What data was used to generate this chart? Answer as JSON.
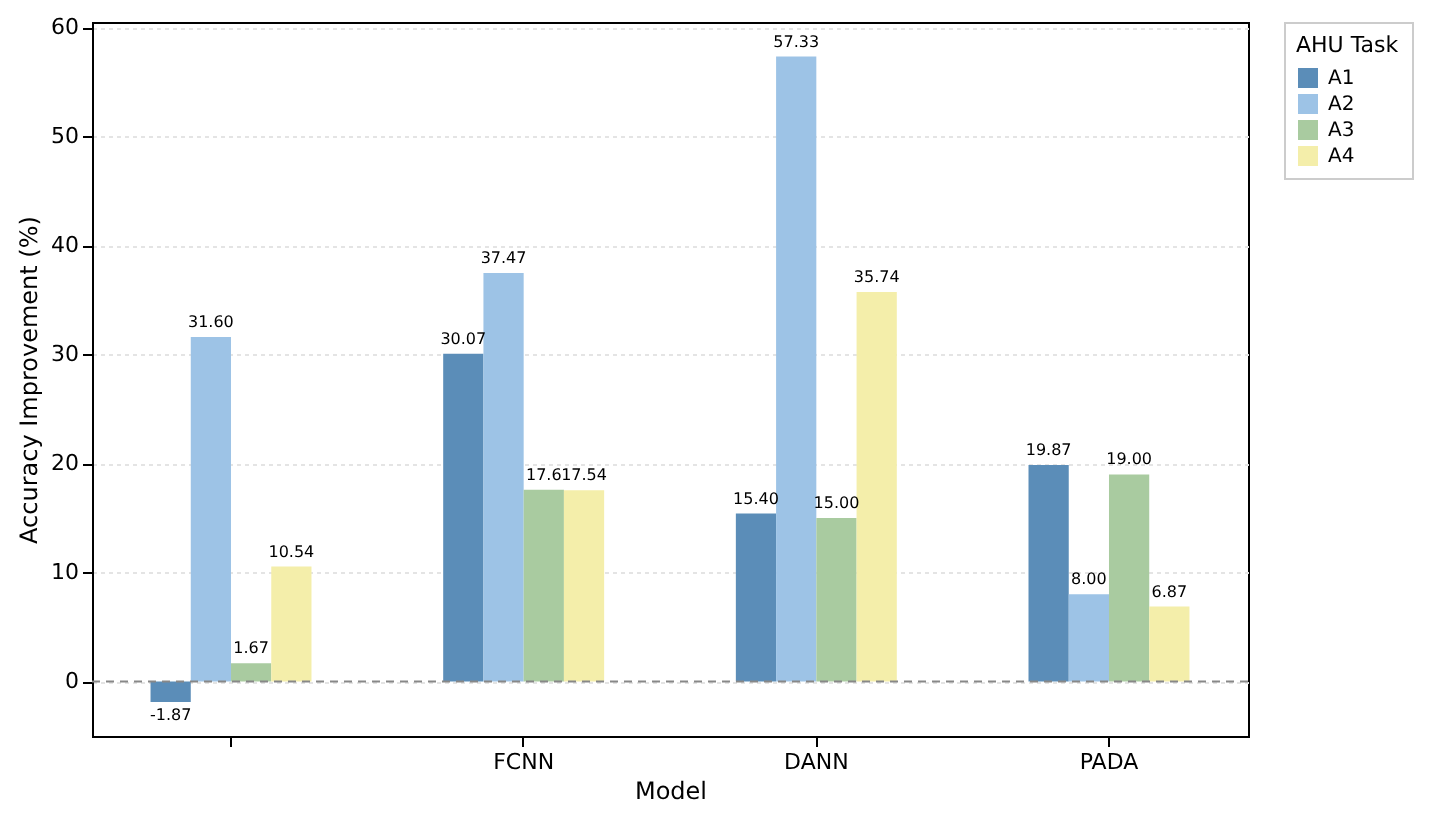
{
  "chart_data": {
    "type": "bar",
    "xlabel": "Model",
    "ylabel": "Accuracy Improvement (%)",
    "legend_title": "AHU Task",
    "legend": "top right",
    "grid": "y",
    "categories": [
      null,
      "FCNN",
      "DANN",
      "PADA"
    ],
    "series": [
      {
        "name": "A1",
        "color": "#5b8db8",
        "values": [
          -1.87,
          30.07,
          15.4,
          19.87
        ],
        "value_labels": [
          "-1.87",
          "30.07",
          "15.40",
          "19.87"
        ]
      },
      {
        "name": "A2",
        "color": "#9dc3e6",
        "values": [
          31.6,
          37.47,
          57.33,
          8.0
        ],
        "value_labels": [
          "31.60",
          "37.47",
          "57.33",
          "8.00"
        ]
      },
      {
        "name": "A3",
        "color": "#a9cba0",
        "values": [
          1.67,
          17.6,
          15.0,
          19.0
        ],
        "value_labels": [
          "1.67",
          "17.6",
          "15.00",
          "19.00"
        ]
      },
      {
        "name": "A4",
        "color": "#f4eeaa",
        "values": [
          10.54,
          17.54,
          35.74,
          6.87
        ],
        "value_labels": [
          "10.54",
          "17.54",
          "35.74",
          "6.87"
        ]
      }
    ],
    "ylim": [
      -5,
      60.5
    ],
    "yticks": [
      0,
      10,
      20,
      30,
      40,
      50,
      60
    ],
    "ref_lines": [
      {
        "axis": "y",
        "value": 0,
        "label": null,
        "color": "#888888",
        "line_style": "dashed"
      }
    ]
  }
}
